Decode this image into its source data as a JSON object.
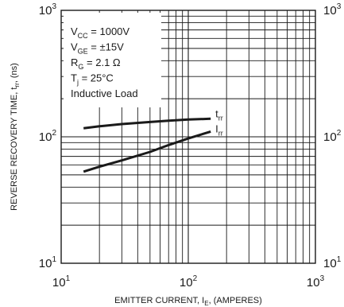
{
  "chart_data": {
    "type": "line",
    "scale": {
      "x": "log",
      "y": "log"
    },
    "xlim": [
      10,
      1000
    ],
    "ylim": [
      10,
      1000
    ],
    "grid": true,
    "xlabel": {
      "main": "EMITTER CURRENT, I",
      "sub": "E",
      "tail": ", (AMPERES)"
    },
    "ylabel": {
      "main": "REVERSE RECOVERY TIME, t",
      "sub": "rr",
      "tail": ", (ns)"
    },
    "x_ticks": [
      {
        "base": "10",
        "exp": "1"
      },
      {
        "base": "10",
        "exp": "2"
      },
      {
        "base": "10",
        "exp": "3"
      }
    ],
    "y_ticks": [
      {
        "base": "10",
        "exp": "3"
      },
      {
        "base": "10",
        "exp": "2"
      },
      {
        "base": "10",
        "exp": "1"
      }
    ],
    "conditions": [
      {
        "pre": "V",
        "sub": "CC",
        "post": " = 1000V"
      },
      {
        "pre": "V",
        "sub": "GE",
        "post": " = ±15V"
      },
      {
        "pre": "R",
        "sub": "G",
        "post": " = 2.1 Ω"
      },
      {
        "pre": "T",
        "sub": "j",
        "post": " = 25°C"
      },
      {
        "pre": "Inductive Load",
        "sub": "",
        "post": ""
      }
    ],
    "series": [
      {
        "label": {
          "main": "t",
          "sub": "rr"
        },
        "x": [
          15,
          20,
          30,
          50,
          70,
          100,
          150
        ],
        "y": [
          117,
          121,
          126,
          131,
          134,
          137,
          139
        ]
      },
      {
        "label": {
          "main": "I",
          "sub": "rr"
        },
        "x": [
          15,
          20,
          30,
          50,
          70,
          100,
          150
        ],
        "y": [
          53,
          58,
          65,
          76,
          86,
          97,
          110
        ]
      }
    ]
  }
}
